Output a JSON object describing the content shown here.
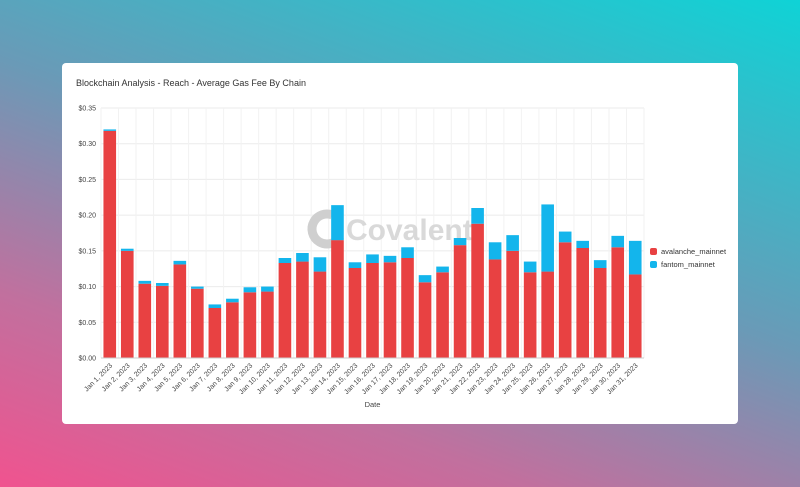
{
  "card": {
    "title": "Blockchain Analysis - Reach - Average Gas Fee By Chain"
  },
  "watermark": {
    "text": "Covalent"
  },
  "colors": {
    "avalanche_mainnet": "#e84142",
    "fantom_mainnet": "#13b5ec"
  },
  "chart_data": {
    "type": "bar",
    "stacked": true,
    "title": "",
    "xlabel": "Date",
    "ylabel": "",
    "ylim": [
      0,
      0.35
    ],
    "yticks": [
      "$0.00",
      "$0.05",
      "$0.10",
      "$0.15",
      "$0.20",
      "$0.25",
      "$0.30",
      "$0.35"
    ],
    "grid": true,
    "legend_position": "right",
    "categories": [
      "Jan 1, 2023",
      "Jan 2, 2023",
      "Jan 3, 2023",
      "Jan 4, 2023",
      "Jan 5, 2023",
      "Jan 6, 2023",
      "Jan 7, 2023",
      "Jan 8, 2023",
      "Jan 9, 2023",
      "Jan 10, 2023",
      "Jan 11, 2023",
      "Jan 12, 2023",
      "Jan 13, 2023",
      "Jan 14, 2023",
      "Jan 15, 2023",
      "Jan 16, 2023",
      "Jan 17, 2023",
      "Jan 18, 2023",
      "Jan 19, 2023",
      "Jan 20, 2023",
      "Jan 21, 2023",
      "Jan 22, 2023",
      "Jan 23, 2023",
      "Jan 24, 2023",
      "Jan 25, 2023",
      "Jan 26, 2023",
      "Jan 27, 2023",
      "Jan 28, 2023",
      "Jan 29, 2023",
      "Jan 30, 2023",
      "Jan 31, 2023"
    ],
    "series": [
      {
        "name": "avalanche_mainnet",
        "values": [
          0.318,
          0.15,
          0.104,
          0.101,
          0.131,
          0.097,
          0.07,
          0.078,
          0.092,
          0.093,
          0.133,
          0.135,
          0.121,
          0.165,
          0.126,
          0.133,
          0.134,
          0.14,
          0.106,
          0.12,
          0.158,
          0.188,
          0.138,
          0.15,
          0.12,
          0.121,
          0.162,
          0.154,
          0.126,
          0.155,
          0.117
        ]
      },
      {
        "name": "fantom_mainnet",
        "values": [
          0.002,
          0.003,
          0.004,
          0.004,
          0.005,
          0.003,
          0.005,
          0.005,
          0.007,
          0.007,
          0.007,
          0.012,
          0.02,
          0.049,
          0.008,
          0.012,
          0.009,
          0.015,
          0.01,
          0.008,
          0.01,
          0.022,
          0.024,
          0.022,
          0.015,
          0.094,
          0.015,
          0.01,
          0.011,
          0.016,
          0.047
        ]
      }
    ]
  }
}
